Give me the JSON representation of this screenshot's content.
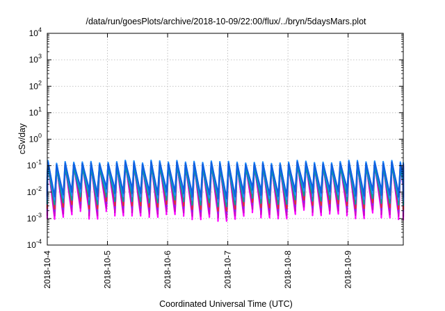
{
  "chart_data": {
    "type": "line",
    "title": "/data/run/goesPlots/archive/2018-10-09/22:00/flux/../bryn/5daysMars.plot",
    "xlabel": "Coordinated Universal Time (UTC)",
    "ylabel": "cSv/day",
    "x_range": [
      "2018-10-04",
      "2018-10-09 22:00"
    ],
    "y_range": [
      0.0001,
      10000
    ],
    "y_scale": "log",
    "grid": true,
    "x_ticks": [
      "2018-10-4",
      "2018-10-5",
      "2018-10-6",
      "2018-10-7",
      "2018-10-8",
      "2018-10-9"
    ],
    "y_ticks": [
      {
        "base": "10",
        "exp": "4"
      },
      {
        "base": "10",
        "exp": "3"
      },
      {
        "base": "10",
        "exp": "2"
      },
      {
        "base": "10",
        "exp": "1"
      },
      {
        "base": "10",
        "exp": "0"
      },
      {
        "base": "10",
        "exp": "-1"
      },
      {
        "base": "10",
        "exp": "-2"
      },
      {
        "base": "10",
        "exp": "-3"
      },
      {
        "base": "10",
        "exp": "-4"
      }
    ],
    "pattern": {
      "cycles_per_day": 7,
      "cycle_peak_value": 0.12,
      "cycle_trough_value": 0.003
    },
    "series_colors": [
      "#ff00ff",
      "#cc00cc",
      "#8a2be2",
      "#e03030",
      "#00a0a0",
      "#2090ff",
      "#1060e0"
    ],
    "series_peak_factors": [
      1.0,
      0.9,
      0.85,
      1.05,
      0.75,
      1.15,
      1.0
    ],
    "series_trough_factors": [
      0.45,
      0.6,
      0.9,
      1.1,
      1.6,
      2.4,
      3.2
    ]
  }
}
